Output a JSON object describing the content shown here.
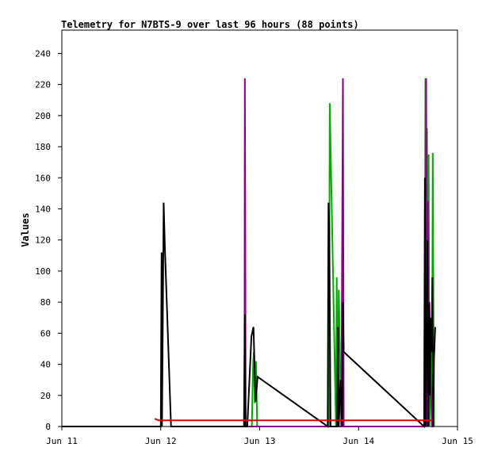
{
  "chart_data": {
    "type": "line",
    "title": "Telemetry for N7BTS-9 over last 96 hours (88 points)",
    "xlabel": "",
    "ylabel": "Values",
    "xlim": [
      0,
      96
    ],
    "ylim": [
      0,
      255
    ],
    "x_ticks": [
      {
        "x": 0,
        "label": "Jun 11"
      },
      {
        "x": 24,
        "label": "Jun 12"
      },
      {
        "x": 48,
        "label": "Jun 13"
      },
      {
        "x": 72,
        "label": "Jun 14"
      },
      {
        "x": 96,
        "label": "Jun 15"
      }
    ],
    "y_ticks": [
      0,
      20,
      40,
      60,
      80,
      100,
      120,
      140,
      160,
      180,
      200,
      220,
      240
    ],
    "grid": false,
    "series": [
      {
        "color": "#00aa00",
        "x": [
          44.3,
          46.1,
          46.4,
          46.6,
          46.8,
          47.1,
          47.4,
          64.8,
          65.0,
          66.5,
          66.7,
          66.9,
          67.2,
          67.5,
          67.8,
          88.0,
          88.2,
          88.4,
          88.6,
          88.8,
          89.0,
          89.2,
          89.5,
          89.8,
          90.0,
          90.3
        ],
        "values": [
          0,
          0,
          40,
          48,
          15,
          42,
          0,
          0,
          208,
          0,
          96,
          0,
          88,
          40,
          0,
          0,
          224,
          0,
          192,
          60,
          175,
          0,
          56,
          0,
          176,
          0
        ]
      },
      {
        "color": "#880088",
        "x": [
          44.3,
          44.4,
          44.5,
          44.6,
          67.8,
          68.0,
          68.2,
          68.4,
          88.0,
          88.2,
          88.4,
          88.6,
          88.8,
          89.0,
          89.2,
          89.5,
          89.8,
          90.3
        ],
        "values": [
          0,
          224,
          140,
          0,
          0,
          112,
          224,
          0,
          0,
          0,
          224,
          0,
          145,
          0,
          80,
          30,
          0,
          0
        ]
      },
      {
        "color": "#000000",
        "x": [
          0,
          24.0,
          24.2,
          24.3,
          24.5,
          24.7,
          25.0,
          26.5,
          44.2,
          44.4,
          44.6,
          45.0,
          46.0,
          46.5,
          47.0,
          47.5,
          64.5,
          64.7,
          64.9,
          65.2,
          66.8,
          67.0,
          67.2,
          67.6,
          68.0,
          68.2,
          68.4,
          87.9,
          88.1,
          88.3,
          88.5,
          88.7,
          88.9,
          89.1,
          89.3,
          89.5,
          89.7,
          89.9,
          90.1,
          90.3,
          90.6
        ],
        "values": [
          0,
          0,
          112,
          0,
          66,
          144,
          116,
          0,
          0,
          72,
          0,
          0,
          58,
          64,
          16,
          32,
          0,
          144,
          128,
          0,
          0,
          64,
          0,
          30,
          0,
          80,
          48,
          0,
          160,
          0,
          56,
          120,
          0,
          80,
          20,
          70,
          48,
          96,
          0,
          44,
          64
        ]
      },
      {
        "color": "#dd0000",
        "x": [
          22.5,
          23.5,
          90.0
        ],
        "values": [
          5,
          4,
          4
        ]
      }
    ]
  }
}
